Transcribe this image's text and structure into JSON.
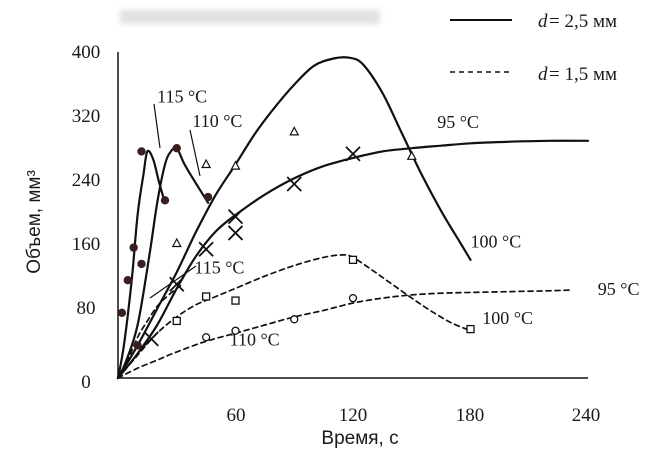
{
  "chart_data": {
    "type": "line",
    "title": "",
    "xlabel": "Время, с",
    "ylabel": "Объем, мм³",
    "xlim": [
      0,
      240
    ],
    "ylim": [
      0,
      400
    ],
    "x_ticks": [
      "60",
      "120",
      "180",
      "240"
    ],
    "y_ticks": [
      "0",
      "80",
      "160",
      "240",
      "320",
      "400"
    ],
    "grid": false,
    "legend_position": "top-right",
    "legend": [
      {
        "var": "d",
        "value": " = 2,5 мм",
        "style": "solid"
      },
      {
        "var": "d",
        "value": " = 1,5 мм",
        "style": "dashed"
      }
    ],
    "series": [
      {
        "name": "115 °C",
        "style": "solid",
        "marker": "dot",
        "curve": [
          [
            0,
            0
          ],
          [
            3,
            40
          ],
          [
            7,
            120
          ],
          [
            10,
            200
          ],
          [
            13,
            250
          ],
          [
            15,
            278
          ],
          [
            18,
            268
          ],
          [
            21,
            240
          ],
          [
            24,
            215
          ]
        ],
        "points": [
          [
            2,
            80
          ],
          [
            5,
            120
          ],
          [
            8,
            160
          ],
          [
            12,
            278
          ],
          [
            24,
            218
          ]
        ]
      },
      {
        "name": "110 °C",
        "style": "solid",
        "marker": "dot",
        "curve": [
          [
            0,
            0
          ],
          [
            4,
            20
          ],
          [
            10,
            65
          ],
          [
            16,
            150
          ],
          [
            20,
            215
          ],
          [
            24,
            262
          ],
          [
            27,
            278
          ],
          [
            30,
            282
          ],
          [
            34,
            262
          ],
          [
            40,
            238
          ],
          [
            46,
            215
          ]
        ],
        "points": [
          [
            10,
            40
          ],
          [
            12,
            140
          ],
          [
            30,
            282
          ],
          [
            46,
            222
          ]
        ]
      },
      {
        "name": "100 °C",
        "style": "solid",
        "marker": "triangle",
        "curve": [
          [
            0,
            0
          ],
          [
            10,
            40
          ],
          [
            20,
            85
          ],
          [
            30,
            130
          ],
          [
            40,
            180
          ],
          [
            50,
            225
          ],
          [
            60,
            262
          ],
          [
            70,
            300
          ],
          [
            80,
            332
          ],
          [
            90,
            360
          ],
          [
            100,
            383
          ],
          [
            110,
            392
          ],
          [
            118,
            393
          ],
          [
            125,
            385
          ],
          [
            135,
            350
          ],
          [
            145,
            300
          ],
          [
            155,
            250
          ],
          [
            165,
            205
          ],
          [
            175,
            165
          ],
          [
            180,
            145
          ]
        ],
        "points": [
          [
            30,
            165
          ],
          [
            45,
            262
          ],
          [
            60,
            260
          ],
          [
            90,
            302
          ],
          [
            150,
            272
          ]
        ]
      },
      {
        "name": "95 °C",
        "style": "solid",
        "marker": "cross",
        "curve": [
          [
            0,
            0
          ],
          [
            10,
            30
          ],
          [
            20,
            65
          ],
          [
            30,
            110
          ],
          [
            40,
            150
          ],
          [
            50,
            180
          ],
          [
            60,
            200
          ],
          [
            75,
            225
          ],
          [
            90,
            245
          ],
          [
            105,
            260
          ],
          [
            120,
            270
          ],
          [
            135,
            278
          ],
          [
            150,
            282
          ],
          [
            165,
            285
          ],
          [
            180,
            288
          ],
          [
            200,
            290
          ],
          [
            220,
            291
          ],
          [
            240,
            291
          ]
        ],
        "points": [
          [
            17,
            48
          ],
          [
            30,
            115
          ],
          [
            45,
            158
          ],
          [
            60,
            178
          ],
          [
            60,
            198
          ],
          [
            90,
            238
          ],
          [
            120,
            275
          ]
        ]
      },
      {
        "name": "115 °C",
        "style": "dashed",
        "marker": "none",
        "curve": [
          [
            0,
            0
          ],
          [
            5,
            22
          ],
          [
            10,
            50
          ],
          [
            15,
            70
          ],
          [
            20,
            88
          ],
          [
            25,
            100
          ],
          [
            30,
            110
          ],
          [
            33,
            115
          ]
        ],
        "points": []
      },
      {
        "name": "100 °C",
        "style": "dashed",
        "marker": "square",
        "curve": [
          [
            0,
            0
          ],
          [
            10,
            28
          ],
          [
            20,
            55
          ],
          [
            30,
            75
          ],
          [
            40,
            90
          ],
          [
            50,
            100
          ],
          [
            60,
            110
          ],
          [
            75,
            125
          ],
          [
            90,
            138
          ],
          [
            105,
            148
          ],
          [
            115,
            151
          ],
          [
            120,
            148
          ],
          [
            130,
            132
          ],
          [
            140,
            115
          ],
          [
            150,
            98
          ],
          [
            160,
            82
          ],
          [
            170,
            68
          ],
          [
            180,
            58
          ]
        ],
        "points": [
          [
            30,
            70
          ],
          [
            45,
            100
          ],
          [
            60,
            95
          ],
          [
            120,
            145
          ],
          [
            180,
            60
          ]
        ]
      },
      {
        "name": "110 °C",
        "style": "dashed",
        "marker": "circle",
        "curve": [
          [
            0,
            0
          ],
          [
            10,
            12
          ],
          [
            20,
            22
          ],
          [
            30,
            32
          ],
          [
            45,
            45
          ],
          [
            60,
            55
          ],
          [
            75,
            65
          ],
          [
            90,
            75
          ],
          [
            105,
            83
          ],
          [
            120,
            92
          ],
          [
            135,
            98
          ],
          [
            150,
            102
          ],
          [
            165,
            104
          ],
          [
            180,
            105
          ],
          [
            200,
            106
          ],
          [
            220,
            107
          ],
          [
            232,
            108
          ]
        ],
        "points": [
          [
            45,
            50
          ],
          [
            60,
            58
          ],
          [
            90,
            72
          ],
          [
            120,
            98
          ]
        ]
      },
      {
        "name": "95 °C",
        "style": "dashed",
        "marker": "none",
        "curve": [],
        "points": []
      }
    ],
    "annotations": [
      {
        "text": "115 °C",
        "x": 20,
        "y": 338
      },
      {
        "text": "110 °C",
        "x": 38,
        "y": 308
      },
      {
        "text": "95 °C",
        "x": 163,
        "y": 307
      },
      {
        "text": "100 °C",
        "x": 180,
        "y": 160
      },
      {
        "text": "115 °C",
        "x": 39,
        "y": 128
      },
      {
        "text": "95 °C",
        "x": 245,
        "y": 102
      },
      {
        "text": "100 °C",
        "x": 186,
        "y": 66
      },
      {
        "text": "110 °C",
        "x": 57,
        "y": 40
      }
    ]
  }
}
